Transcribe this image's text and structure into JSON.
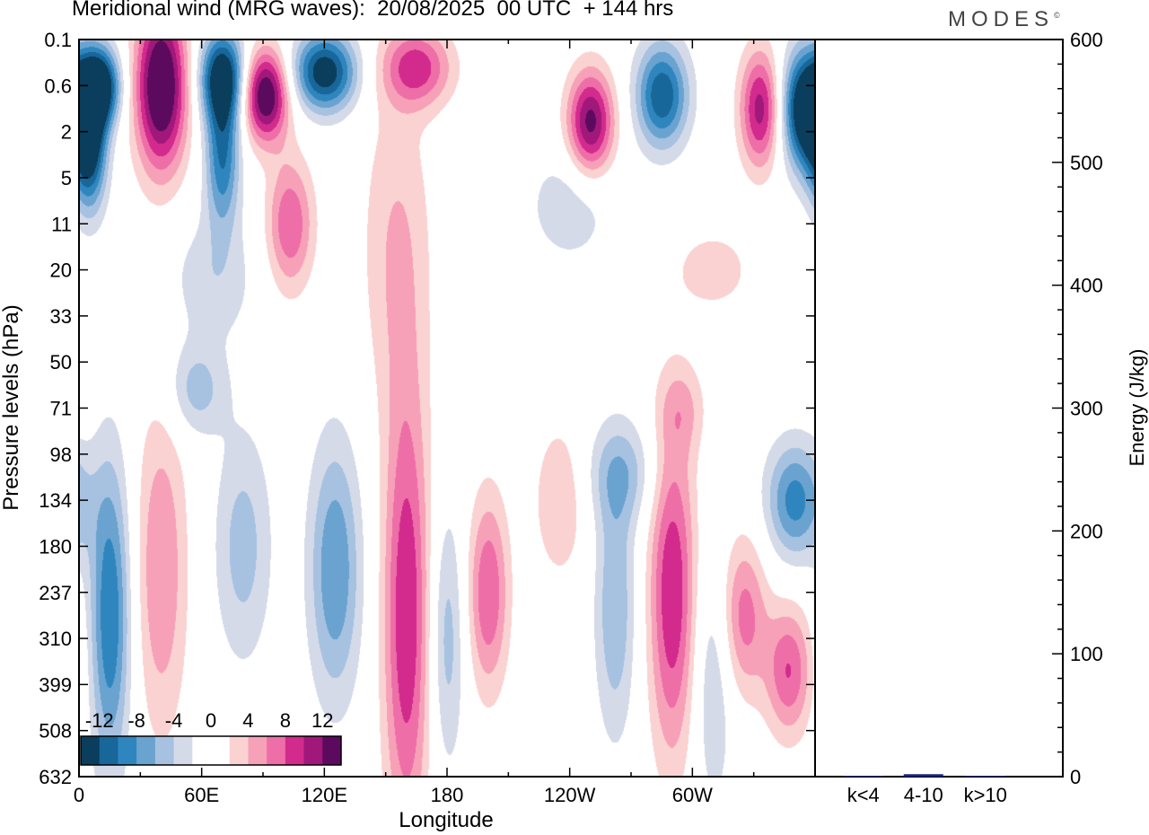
{
  "title": "Meridional wind (MRG waves):  20/08/2025  00 UTC  + 144 hrs",
  "logo": "MODES",
  "logo_mark": "©",
  "chart_data": [
    {
      "type": "heatmap",
      "title": "Meridional wind (MRG waves)",
      "xlabel": "Longitude",
      "ylabel": "Pressure levels (hPa)",
      "x_ticks": [
        "0",
        "60E",
        "120E",
        "180",
        "120W",
        "60W"
      ],
      "x_range": [
        0,
        360
      ],
      "y_ticks": [
        "0.1",
        "0.6",
        "2",
        "5",
        "11",
        "20",
        "33",
        "50",
        "71",
        "98",
        "134",
        "180",
        "237",
        "310",
        "399",
        "508",
        "632"
      ],
      "colorbar": {
        "labels": [
          "-12",
          "-8",
          "-4",
          "0",
          "4",
          "8",
          "12"
        ],
        "colors": [
          "#0b3d5c",
          "#17679a",
          "#2f86bf",
          "#6aa3d0",
          "#a7c2e0",
          "#d5dae9",
          "#ffffff",
          "#ffffff",
          "#fbd2d2",
          "#f6a1b8",
          "#ee6fa7",
          "#d32a8e",
          "#a0187a",
          "#5c0a5e"
        ]
      },
      "blobs": [
        {
          "lon": 10,
          "lev": 1.0,
          "v": -15,
          "sx": 7,
          "sy": 0.6
        },
        {
          "lon": 5,
          "lev": 2.3,
          "v": -13,
          "sx": 6,
          "sy": 1.0
        },
        {
          "lon": 40,
          "lev": 1.0,
          "v": 16,
          "sx": 9,
          "sy": 1.3
        },
        {
          "lon": 70,
          "lev": 0.8,
          "v": -14,
          "sx": 8,
          "sy": 0.7
        },
        {
          "lon": 70,
          "lev": 2.5,
          "v": -10,
          "sx": 6,
          "sy": 1.1
        },
        {
          "lon": 91,
          "lev": 1.2,
          "v": 15,
          "sx": 8,
          "sy": 0.7
        },
        {
          "lon": 103,
          "lev": 4.0,
          "v": 8,
          "sx": 8,
          "sy": 1.0
        },
        {
          "lon": 120,
          "lev": 0.7,
          "v": -14,
          "sx": 11,
          "sy": 0.6
        },
        {
          "lon": 155,
          "lev": 4.5,
          "v": 4,
          "sx": 12,
          "sy": 2.5
        },
        {
          "lon": 165,
          "lev": 0.6,
          "v": 9,
          "sx": 12,
          "sy": 0.6
        },
        {
          "lon": 250,
          "lev": 1.8,
          "v": 13,
          "sx": 8,
          "sy": 0.8
        },
        {
          "lon": 285,
          "lev": 1.2,
          "v": -12,
          "sx": 9,
          "sy": 0.8
        },
        {
          "lon": 333,
          "lev": 1.5,
          "v": 11,
          "sx": 7,
          "sy": 0.9
        },
        {
          "lon": 355,
          "lev": 1.5,
          "v": -16,
          "sx": 8,
          "sy": 0.9
        },
        {
          "lon": 240,
          "lev": 3.6,
          "v": -3.5,
          "sx": 15,
          "sy": 0.9
        },
        {
          "lon": 65,
          "lev": 5.2,
          "v": -3.5,
          "sx": 15,
          "sy": 1.0
        },
        {
          "lon": 310,
          "lev": 5.0,
          "v": 3,
          "sx": 15,
          "sy": 0.7
        },
        {
          "lon": 57,
          "lev": 7.6,
          "v": -5,
          "sx": 10,
          "sy": 0.7
        },
        {
          "lon": 15,
          "lev": 12.5,
          "v": -10,
          "sx": 7,
          "sy": 2.4
        },
        {
          "lon": 40,
          "lev": 11.5,
          "v": 6,
          "sx": 9,
          "sy": 2.5
        },
        {
          "lon": 80,
          "lev": 11.0,
          "v": -5,
          "sx": 10,
          "sy": 1.8
        },
        {
          "lon": 125,
          "lev": 11.5,
          "v": -8,
          "sx": 9,
          "sy": 2.0
        },
        {
          "lon": 160,
          "lev": 12.5,
          "v": 10,
          "sx": 8,
          "sy": 3.5
        },
        {
          "lon": 180,
          "lev": 13.0,
          "v": -5,
          "sx": 6,
          "sy": 2.0
        },
        {
          "lon": 200,
          "lev": 12.0,
          "v": 8,
          "sx": 7,
          "sy": 1.5
        },
        {
          "lon": 235,
          "lev": 10.0,
          "v": 4,
          "sx": 9,
          "sy": 1.2
        },
        {
          "lon": 262,
          "lev": 12.3,
          "v": -6,
          "sx": 7,
          "sy": 2.0
        },
        {
          "lon": 265,
          "lev": 9.4,
          "v": -5,
          "sx": 12,
          "sy": 0.8
        },
        {
          "lon": 290,
          "lev": 12.0,
          "v": 10,
          "sx": 8,
          "sy": 2.5
        },
        {
          "lon": 310,
          "lev": 14.0,
          "v": -4,
          "sx": 7,
          "sy": 2.0
        },
        {
          "lon": 325,
          "lev": 12.5,
          "v": 7,
          "sx": 8,
          "sy": 1.2
        },
        {
          "lon": 347,
          "lev": 13.7,
          "v": 8,
          "sx": 8,
          "sy": 1.0
        },
        {
          "lon": 350,
          "lev": 10.0,
          "v": -9,
          "sx": 10,
          "sy": 0.9
        },
        {
          "lon": 295,
          "lev": 8.0,
          "v": 3.5,
          "sx": 8,
          "sy": 0.7
        }
      ]
    },
    {
      "type": "bar",
      "ylabel": "Energy (J/kg)",
      "categories": [
        "k<4",
        "4-10",
        "k>10"
      ],
      "values": [
        0.3,
        2.0,
        0.2
      ],
      "ylim": [
        0,
        600
      ],
      "y_ticks": [
        "0",
        "100",
        "200",
        "300",
        "400",
        "500",
        "600"
      ],
      "bar_colors": [
        "#1a237e",
        "#1a237e",
        "#1a237e"
      ]
    }
  ]
}
